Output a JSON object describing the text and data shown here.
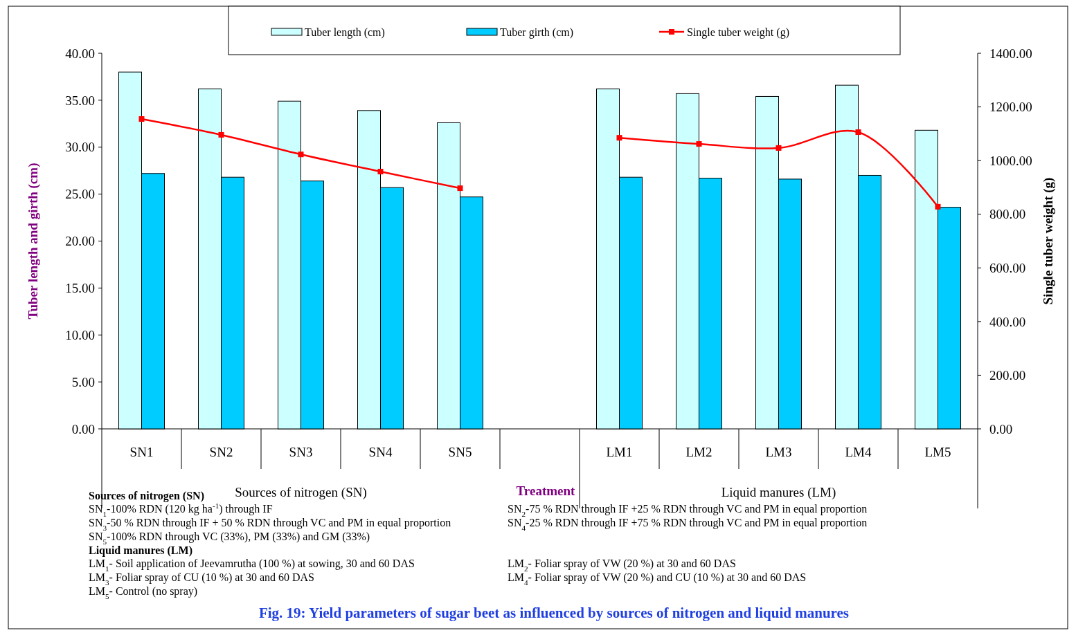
{
  "chart_data": {
    "type": "bar",
    "title": "Fig. 19: Yield parameters  of sugar beet as influenced by sources of nitrogen and liquid manures",
    "xlabel": "Treatment",
    "ylabel": "Tuber length and girth (cm)",
    "y2label": "Single tuber  weight (g)",
    "categories": [
      "SN1",
      "SN2",
      "SN3",
      "SN4",
      "SN5",
      null,
      "LM1",
      "LM2",
      "LM3",
      "LM4",
      "LM5"
    ],
    "series": [
      {
        "name": "Tuber length (cm)",
        "color": "#ccffff",
        "values": [
          38.0,
          36.2,
          34.9,
          33.9,
          32.6,
          null,
          36.2,
          35.7,
          35.4,
          36.6,
          31.8
        ]
      },
      {
        "name": "Tuber girth (cm)",
        "color": "#00ccff",
        "values": [
          27.2,
          26.8,
          26.4,
          25.7,
          24.7,
          null,
          26.8,
          26.7,
          26.6,
          27.0,
          23.6
        ]
      },
      {
        "name": "Single tuber weight (g)",
        "color": "#ff0000",
        "type": "line",
        "axis": "y2",
        "marker": "square",
        "values": [
          1155,
          1096,
          1023,
          959,
          897,
          null,
          1085,
          1062,
          1047,
          1106,
          828
        ]
      }
    ],
    "ylim": [
      0,
      40
    ],
    "yticks": [
      {
        "value": 0,
        "label": "0.00"
      },
      {
        "value": 5,
        "label": "5.00"
      },
      {
        "value": 10,
        "label": "10.00"
      },
      {
        "value": 15,
        "label": "15.00"
      },
      {
        "value": 20,
        "label": "20.00"
      },
      {
        "value": 25,
        "label": "25.00"
      },
      {
        "value": 30,
        "label": "30.00"
      },
      {
        "value": 35,
        "label": "35.00"
      },
      {
        "value": 40,
        "label": "40.00"
      }
    ],
    "y2lim": [
      0,
      1400
    ],
    "y2ticks": [
      {
        "value": 0,
        "label": "0.00"
      },
      {
        "value": 200,
        "label": "200.00"
      },
      {
        "value": 400,
        "label": "400.00"
      },
      {
        "value": 600,
        "label": "600.00"
      },
      {
        "value": 800,
        "label": "800.00"
      },
      {
        "value": 1000,
        "label": "1000.00"
      },
      {
        "value": 1200,
        "label": "1200.00"
      },
      {
        "value": 1400,
        "label": "1400.00"
      }
    ],
    "legend": "top",
    "grid": false,
    "annotations": [
      "Sources of nitrogen  (SN)",
      "Liquid manures (LM)",
      "Sources of nitrogen (SN)",
      "SN$_{1}$-100% RDN (120 kg ha$^{-1}$) through IF",
      "SN$_{2}$-75 % RDN through IF +25 % RDN through VC and PM in equal proportion",
      "SN$_{3}$-50 % RDN through IF + 50 % RDN through VC and PM in equal proportion",
      "SN$_{4}$-25 % RDN through IF +75 % RDN through VC and PM  in equal proportion",
      "SN$_{5}$-100% RDN through VC (33%), PM  (33%) and GM (33%)",
      "Liquid manures (LM)",
      "LM$_{1}$- Soil application of Jeevamrutha (100 %) at sowing, 30 and 60 DAS",
      "LM$_{2}$- Foliar spray of VW (20 %) at 30 and 60 DAS",
      "LM$_{3}$- Foliar spray of CU (10 %) at 30 and 60 DAS",
      "LM$_{4}$- Foliar spray of VW (20 %) and CU (10 %) at 30 and 60 DAS",
      "LM$_{5}$- Control (no spray)"
    ]
  }
}
